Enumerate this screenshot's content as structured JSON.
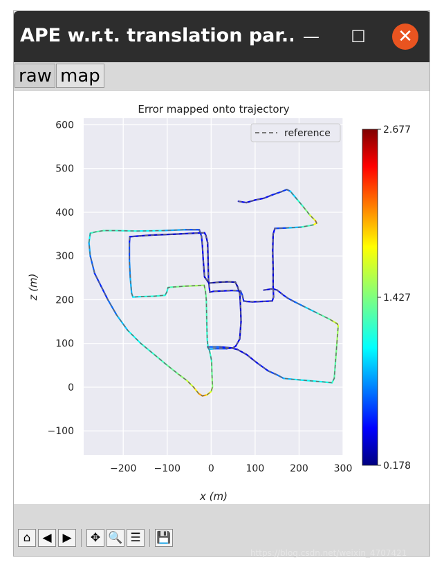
{
  "window": {
    "title": "APE w.r.t. translation par...",
    "min_label": "—",
    "max_label": "☐",
    "close_label": "✕"
  },
  "tabs": [
    {
      "label": "raw"
    },
    {
      "label": "map"
    }
  ],
  "chart_data": {
    "type": "line",
    "title": "Error mapped onto trajectory",
    "xlabel": "x (m)",
    "ylabel": "z (m)",
    "xlim": [
      -290,
      300
    ],
    "ylim": [
      -155,
      615
    ],
    "xticks": [
      -200,
      -100,
      0,
      100,
      200,
      300
    ],
    "yticks": [
      -100,
      0,
      100,
      200,
      300,
      400,
      500,
      600
    ],
    "grid": true,
    "legend": {
      "position": "top-right",
      "entries": [
        {
          "label": "reference",
          "style": "dashed",
          "color": "#777777"
        }
      ]
    },
    "colorbar": {
      "colormap": "jet",
      "min": 0.178,
      "mid": 1.427,
      "max": 2.677,
      "labels": [
        "2.677",
        "1.427",
        "0.178"
      ]
    },
    "series": [
      {
        "name": "reference",
        "colored_by_error": true,
        "points": [
          [
            62,
            425
          ],
          [
            80,
            422
          ],
          [
            100,
            428
          ],
          [
            120,
            432
          ],
          [
            140,
            440
          ],
          [
            160,
            447
          ],
          [
            172,
            452
          ],
          [
            180,
            448
          ],
          [
            195,
            430
          ],
          [
            210,
            412
          ],
          [
            225,
            393
          ],
          [
            237,
            381
          ],
          [
            240,
            375
          ],
          [
            232,
            371
          ],
          [
            205,
            366
          ],
          [
            170,
            364
          ],
          [
            145,
            363
          ],
          [
            141,
            350
          ],
          [
            140,
            310
          ],
          [
            141,
            270
          ],
          [
            141,
            230
          ],
          [
            142,
            206
          ],
          [
            139,
            197
          ],
          [
            117,
            196
          ],
          [
            94,
            195
          ],
          [
            80,
            196
          ],
          [
            74,
            197
          ],
          [
            71,
            210
          ],
          [
            67,
            220
          ],
          [
            48,
            221
          ],
          [
            26,
            220
          ],
          [
            5,
            219
          ],
          [
            -3,
            217
          ],
          [
            -6,
            245
          ],
          [
            -7,
            290
          ],
          [
            -8,
            330
          ],
          [
            -12,
            347
          ],
          [
            -15,
            353
          ],
          [
            -40,
            352
          ],
          [
            -80,
            350
          ],
          [
            -130,
            348
          ],
          [
            -160,
            346
          ],
          [
            -185,
            344
          ],
          [
            -186,
            330
          ],
          [
            -186,
            290
          ],
          [
            -184,
            250
          ],
          [
            -181,
            215
          ],
          [
            -178,
            206
          ],
          [
            -160,
            207
          ],
          [
            -130,
            208
          ],
          [
            -105,
            210
          ],
          [
            -101,
            217
          ],
          [
            -98,
            228
          ],
          [
            -85,
            229
          ],
          [
            -60,
            231
          ],
          [
            -35,
            232
          ],
          [
            -16,
            233
          ],
          [
            -13,
            220
          ],
          [
            -11,
            200
          ],
          [
            -10,
            150
          ],
          [
            -9,
            110
          ],
          [
            -7,
            90
          ],
          [
            -5,
            87
          ],
          [
            10,
            88
          ],
          [
            35,
            88
          ],
          [
            50,
            90
          ],
          [
            56,
            94
          ],
          [
            65,
            110
          ],
          [
            68,
            150
          ],
          [
            67,
            180
          ],
          [
            66,
            200
          ],
          [
            65,
            215
          ],
          [
            60,
            230
          ],
          [
            55,
            240
          ],
          [
            40,
            241
          ],
          [
            18,
            240
          ],
          [
            -5,
            238
          ],
          [
            -15,
            252
          ],
          [
            -18,
            290
          ],
          [
            -20,
            325
          ],
          [
            -22,
            345
          ],
          [
            -27,
            360
          ],
          [
            -60,
            360
          ],
          [
            -110,
            358
          ],
          [
            -170,
            357
          ],
          [
            -215,
            358
          ],
          [
            -245,
            358
          ],
          [
            -263,
            355
          ],
          [
            -275,
            352
          ],
          [
            -278,
            330
          ],
          [
            -275,
            300
          ],
          [
            -265,
            260
          ],
          [
            -250,
            230
          ],
          [
            -235,
            200
          ],
          [
            -215,
            165
          ],
          [
            -190,
            130
          ],
          [
            -160,
            100
          ],
          [
            -130,
            75
          ],
          [
            -100,
            50
          ],
          [
            -75,
            30
          ],
          [
            -55,
            15
          ],
          [
            -40,
            0
          ],
          [
            -28,
            -15
          ],
          [
            -20,
            -20
          ],
          [
            -10,
            -18
          ],
          [
            0,
            -10
          ],
          [
            3,
            0
          ],
          [
            2,
            25
          ],
          [
            1,
            60
          ],
          [
            -4,
            85
          ],
          [
            -8,
            92
          ],
          [
            20,
            92
          ],
          [
            45,
            90
          ],
          [
            60,
            86
          ],
          [
            80,
            75
          ],
          [
            105,
            55
          ],
          [
            130,
            37
          ],
          [
            150,
            28
          ],
          [
            165,
            20
          ],
          [
            185,
            18
          ],
          [
            220,
            15
          ],
          [
            255,
            12
          ],
          [
            275,
            10
          ],
          [
            280,
            20
          ],
          [
            283,
            60
          ],
          [
            286,
            100
          ],
          [
            289,
            140
          ],
          [
            287,
            145
          ],
          [
            270,
            155
          ],
          [
            240,
            170
          ],
          [
            210,
            185
          ],
          [
            190,
            195
          ],
          [
            175,
            203
          ],
          [
            165,
            210
          ],
          [
            150,
            222
          ],
          [
            140,
            225
          ],
          [
            120,
            222
          ]
        ],
        "errors": [
          0.45,
          0.4,
          0.4,
          0.45,
          0.5,
          0.55,
          0.6,
          0.8,
          1.1,
          1.3,
          1.55,
          1.85,
          2.2,
          1.4,
          1.1,
          0.7,
          0.5,
          0.4,
          0.35,
          0.35,
          0.4,
          0.45,
          0.5,
          0.4,
          0.4,
          0.45,
          0.5,
          0.55,
          0.6,
          0.45,
          0.4,
          0.4,
          0.45,
          0.4,
          0.35,
          0.35,
          0.4,
          0.45,
          0.4,
          0.35,
          0.35,
          0.4,
          0.45,
          0.55,
          0.7,
          0.85,
          0.9,
          0.95,
          1.1,
          1.2,
          1.15,
          1.1,
          1.2,
          1.35,
          1.45,
          1.55,
          1.5,
          1.4,
          1.3,
          1.2,
          1.2,
          1.1,
          1.0,
          0.7,
          0.5,
          0.45,
          0.45,
          0.4,
          0.35,
          0.35,
          0.35,
          0.35,
          0.3,
          0.3,
          0.25,
          0.25,
          0.3,
          0.35,
          0.4,
          0.45,
          0.5,
          0.55,
          0.7,
          1.0,
          1.1,
          1.2,
          1.25,
          1.3,
          1.15,
          0.95,
          0.75,
          0.6,
          0.5,
          0.6,
          0.8,
          1.0,
          1.15,
          1.2,
          1.3,
          1.4,
          1.55,
          1.75,
          1.95,
          2.1,
          1.9,
          1.7,
          1.5,
          1.4,
          1.3,
          1.1,
          0.8,
          0.55,
          0.45,
          0.4,
          0.4,
          0.45,
          0.55,
          0.65,
          0.8,
          1.0,
          1.05,
          1.1,
          1.15,
          1.25,
          1.35,
          1.45,
          1.6,
          1.8,
          1.5,
          1.1,
          0.8,
          0.65,
          0.55,
          0.5,
          0.45,
          0.4,
          0.4
        ]
      }
    ]
  },
  "toolbar": {
    "home_icon": "⌂",
    "back_icon": "◀",
    "forward_icon": "▶",
    "pan_icon": "✥",
    "zoom_icon": "🔍",
    "configure_icon": "☰",
    "save_icon": "💾"
  },
  "watermark": "https://blog.csdn.net/weixin_4707421"
}
